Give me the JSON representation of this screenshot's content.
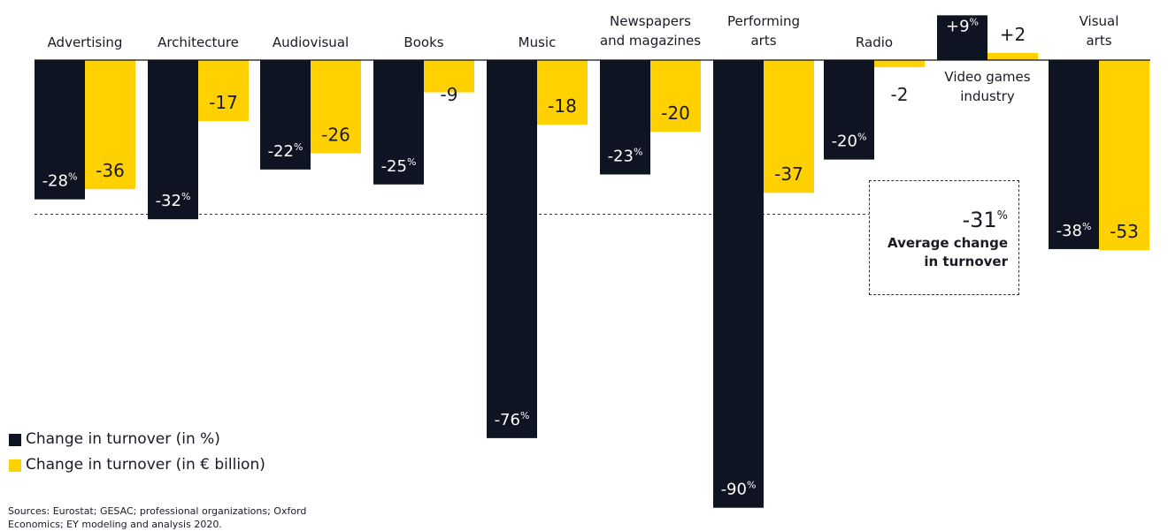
{
  "colors": {
    "pct": "#0f1423",
    "abs": "#ffd100",
    "text": "#1a1a24",
    "label_on_bar": "#ffffff"
  },
  "chart_data": {
    "type": "bar",
    "categories": [
      "Advertising",
      "Architecture",
      "Audiovisual",
      "Books",
      "Music",
      "Newspapers and magazines",
      "Performing arts",
      "Radio",
      "Video games industry",
      "Visual arts"
    ],
    "category_label_lines": [
      [
        "Advertising"
      ],
      [
        "Architecture"
      ],
      [
        "Audiovisual"
      ],
      [
        "Books"
      ],
      [
        "Music"
      ],
      [
        "Newspapers",
        "and magazines"
      ],
      [
        "Performing",
        "arts"
      ],
      [
        "Radio"
      ],
      [
        "Video games",
        "industry"
      ],
      [
        "Visual",
        "arts"
      ]
    ],
    "series": [
      {
        "name": "Change in turnover (in %)",
        "values": [
          -28,
          -32,
          -22,
          -25,
          -76,
          -23,
          -90,
          -20,
          9,
          -38
        ]
      },
      {
        "name": "Change in turnover (in € billion)",
        "values": [
          -36,
          -17,
          -26,
          -9,
          -18,
          -20,
          -37,
          -2,
          2,
          -53
        ]
      }
    ],
    "pct_labels": [
      "-28",
      "-32",
      "-22",
      "-25",
      "-76",
      "-23",
      "-90",
      "-20",
      "+9",
      "-38"
    ],
    "abs_labels": [
      "-36",
      "-17",
      "-26",
      "-9",
      "-18",
      "-20",
      "-37",
      "-2",
      "+2",
      "-53"
    ],
    "percent_sign": "%",
    "reference_line": {
      "value": -31,
      "label_value": "-31",
      "label_unit": "%",
      "label_lines": [
        "Average change",
        "in turnover"
      ]
    },
    "ylim": [
      -90,
      9
    ]
  },
  "legend": {
    "items": [
      "Change in turnover (in %)",
      "Change in turnover (in € billion)"
    ]
  },
  "source": "Sources: Eurostat; GESAC; professional organizations; Oxford Economics; EY modeling and analysis 2020."
}
